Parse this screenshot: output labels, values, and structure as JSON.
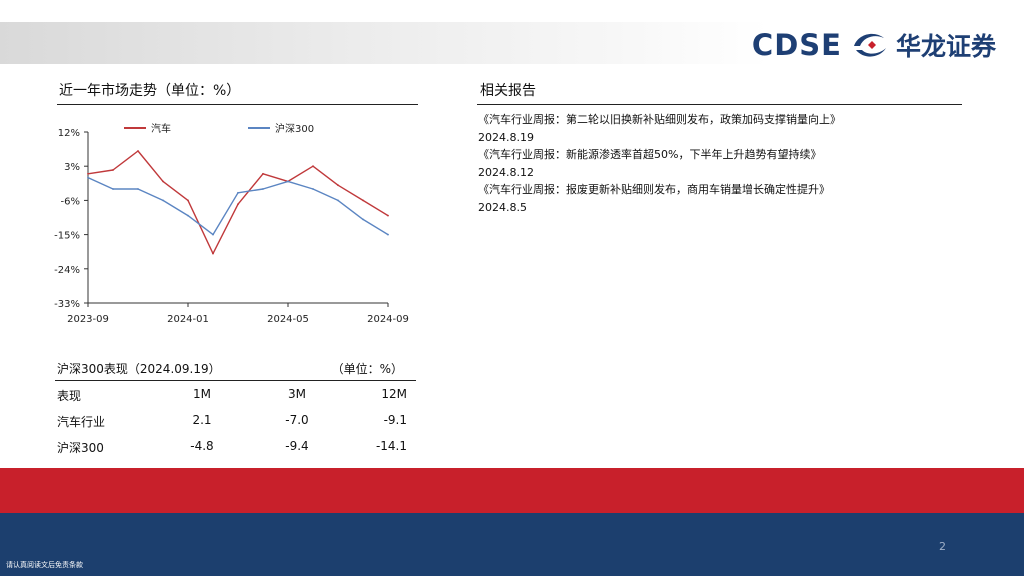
{
  "brand": {
    "latin": "CDSE",
    "chinese": "华龙证券"
  },
  "chart_section": {
    "title": "近一年市场走势（单位：%）"
  },
  "reports_section": {
    "title": "相关报告",
    "items": [
      {
        "title": "《汽车行业周报：第二轮以旧换新补贴细则发布，政策加码支撑销量向上》",
        "date": "2024.8.19"
      },
      {
        "title": "《汽车行业周报：新能源渗透率首超50%，下半年上升趋势有望持续》",
        "date": "2024.8.12"
      },
      {
        "title": "《汽车行业周报：报废更新补贴细则发布，商用车销量增长确定性提升》",
        "date": "2024.8.5"
      }
    ]
  },
  "performance": {
    "title": "沪深300表现（2024.09.19）",
    "unit": "（单位：%）",
    "headers": [
      "表现",
      "1M",
      "3M",
      "12M"
    ],
    "rows": [
      [
        "汽车行业",
        "2.1",
        "-7.0",
        "-9.1"
      ],
      [
        "沪深300",
        "-4.8",
        "-9.4",
        "-14.1"
      ]
    ]
  },
  "page_number": "2",
  "disclaimer": "请认真阅读文后免责条款",
  "chart_data": {
    "type": "line",
    "x": [
      "2023-09",
      "2023-10",
      "2023-11",
      "2023-12",
      "2024-01",
      "2024-02",
      "2024-03",
      "2024-04",
      "2024-05",
      "2024-06",
      "2024-07",
      "2024-08",
      "2024-09"
    ],
    "x_ticks": [
      "2023-09",
      "2024-01",
      "2024-05",
      "2024-09"
    ],
    "y_ticks": [
      "12%",
      "3%",
      "-6%",
      "-15%",
      "-24%",
      "-33%"
    ],
    "y_tick_values": [
      12,
      3,
      -6,
      -15,
      -24,
      -33
    ],
    "ylim": [
      -33,
      12
    ],
    "series": [
      {
        "name": "汽车",
        "color": "#c0393b",
        "values": [
          1,
          2,
          7,
          -1,
          -6,
          -20,
          -7,
          1,
          -1,
          3,
          -2,
          -6,
          -10
        ]
      },
      {
        "name": "沪深300",
        "color": "#5b85c2",
        "values": [
          0,
          -3,
          -3,
          -6,
          -10,
          -15,
          -4,
          -3,
          -1,
          -3,
          -6,
          -11,
          -15
        ]
      }
    ],
    "grid": false,
    "legend": "top"
  }
}
